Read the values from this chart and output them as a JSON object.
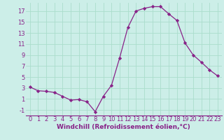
{
  "x": [
    0,
    1,
    2,
    3,
    4,
    5,
    6,
    7,
    8,
    9,
    10,
    11,
    12,
    13,
    14,
    15,
    16,
    17,
    18,
    19,
    20,
    21,
    22,
    23
  ],
  "y": [
    3.2,
    2.5,
    2.4,
    2.2,
    1.5,
    0.8,
    0.9,
    0.5,
    -1.3,
    1.5,
    3.5,
    8.5,
    14.0,
    17.0,
    17.5,
    17.8,
    17.8,
    16.5,
    15.3,
    11.2,
    9.0,
    7.7,
    6.3,
    5.2
  ],
  "line_color": "#882288",
  "marker": "D",
  "marker_size": 2.2,
  "background_color": "#cceee8",
  "grid_color": "#aaddcc",
  "xlabel": "Windchill (Refroidissement éolien,°C)",
  "xlabel_color": "#882288",
  "tick_color": "#882288",
  "ylim": [
    -2,
    18.5
  ],
  "yticks": [
    -1,
    1,
    3,
    5,
    7,
    9,
    11,
    13,
    15,
    17
  ],
  "xticks": [
    0,
    1,
    2,
    3,
    4,
    5,
    6,
    7,
    8,
    9,
    10,
    11,
    12,
    13,
    14,
    15,
    16,
    17,
    18,
    19,
    20,
    21,
    22,
    23
  ],
  "font_size": 6.0,
  "xlabel_fontsize": 6.5
}
